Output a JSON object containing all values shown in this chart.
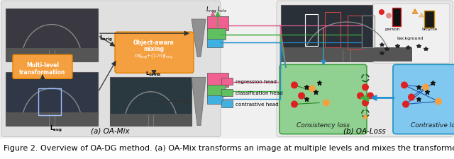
{
  "background_color": "#ffffff",
  "caption_text": "Figure 2. Overview of OA-DG method. (a) OA-Mix transforms an image at multiple levels and mixes the transformed image",
  "caption_fontsize": 8.0,
  "caption_color": "#000000",
  "figure_width": 6.4,
  "figure_height": 2.26,
  "dpi": 100,
  "panel_a_bg": "#e0e0e0",
  "panel_b_bg": "#e8e8e8",
  "outer_bg": "#f0f0f0",
  "panel_a_title": "(a) OA-Mix",
  "panel_b_title": "(b) OA-Loss",
  "legend_items": [
    {
      "label": "regression head",
      "color": "#f06090"
    },
    {
      "label": "classification head",
      "color": "#60c060"
    },
    {
      "label": "contrastive head",
      "color": "#40b0e0"
    }
  ],
  "transform_box_color": "#f5a040",
  "transform_box_edge": "#e08000",
  "mixing_box_color": "#f5a040",
  "mixing_box_edge": "#e08000",
  "consistency_box_color": "#90d090",
  "consistency_box_edge": "#40a040",
  "contrastive_box_color": "#80c8f0",
  "contrastive_box_edge": "#2090c0",
  "tunnel_dark": "#3a3a3a",
  "tunnel_bluish": "#3a5070",
  "tunnel_mixed": "#2a4050",
  "detector_color": "#909090",
  "pink_color": "#f06090",
  "green_color": "#60c060",
  "blue_color": "#40b0e0",
  "arrow_color": "#333333",
  "pink_arrow": "#e06090",
  "green_arrow": "#40b040",
  "blue_arrow": "#2090d0"
}
